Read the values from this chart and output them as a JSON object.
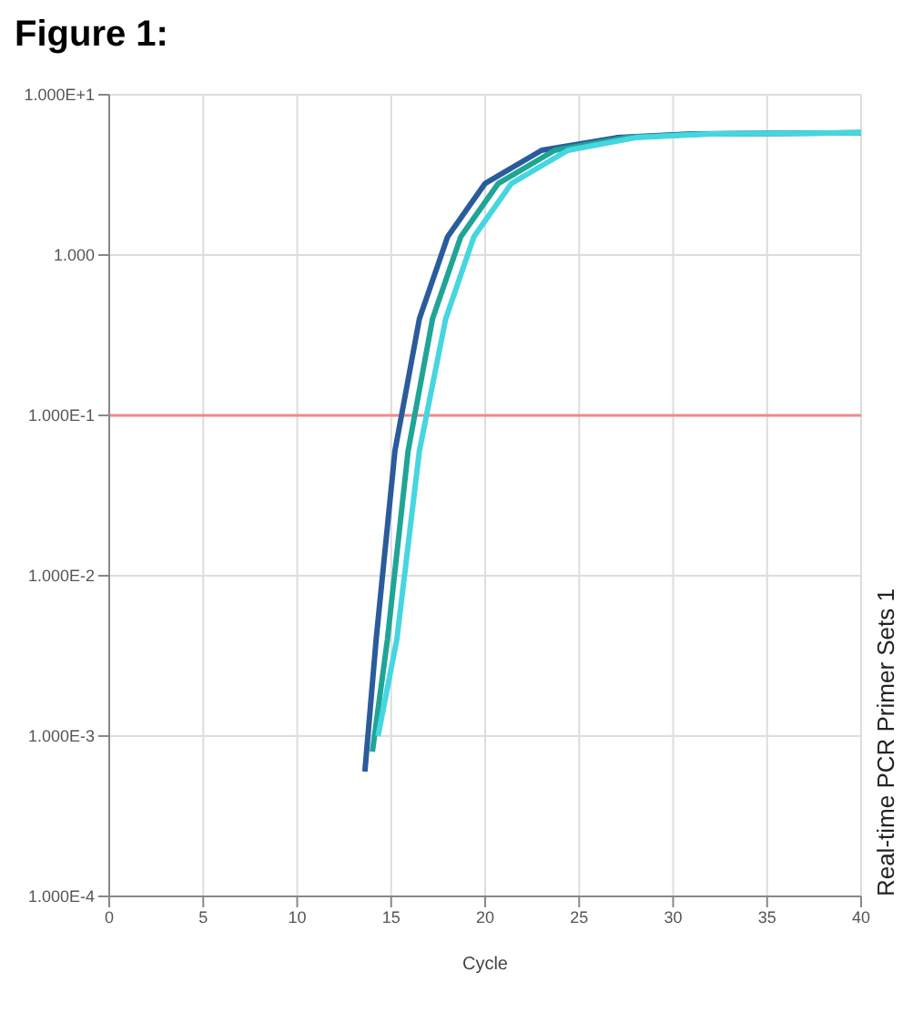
{
  "chart_data": {
    "type": "line",
    "title": "Figure 1:",
    "xlabel": "Cycle",
    "annotations": [
      "Real-time PCR Primer Sets 1"
    ],
    "series": [
      {
        "color": "#2a5c9c",
        "x": [
          13.6,
          14.2,
          15.2,
          16.5,
          18,
          20,
          23,
          27,
          31,
          40
        ],
        "values": [
          0.0006,
          0.004,
          0.06,
          0.4,
          1.3,
          2.8,
          4.5,
          5.4,
          5.7,
          5.8
        ]
      },
      {
        "color": "#1fa596",
        "x": [
          14,
          14.8,
          15.9,
          17.2,
          18.7,
          20.7,
          23.7,
          27.5,
          31.5,
          40
        ],
        "values": [
          0.0008,
          0.004,
          0.06,
          0.4,
          1.3,
          2.8,
          4.5,
          5.4,
          5.7,
          5.8
        ]
      },
      {
        "color": "#45d6e0",
        "x": [
          14.3,
          15.3,
          16.5,
          17.9,
          19.4,
          21.4,
          24.4,
          28,
          32,
          40
        ],
        "values": [
          0.001,
          0.004,
          0.06,
          0.4,
          1.3,
          2.8,
          4.5,
          5.4,
          5.7,
          5.8
        ]
      }
    ],
    "xlim": [
      0,
      40
    ],
    "xticks": [
      0,
      5,
      10,
      15,
      20,
      25,
      30,
      35,
      40
    ],
    "ylim": [
      0.0001,
      10
    ],
    "yticks": [
      {
        "value": 0.0001,
        "label": "1.000E-4"
      },
      {
        "value": 0.001,
        "label": "1.000E-3"
      },
      {
        "value": 0.01,
        "label": "1.000E-2"
      },
      {
        "value": 0.1,
        "label": "1.000E-1"
      },
      {
        "value": 1,
        "label": "1.000"
      },
      {
        "value": 10,
        "label": "1.000E+1"
      }
    ],
    "log": "y",
    "grid": true,
    "marker": "none",
    "line_style": "solid",
    "ref_lines": [
      {
        "axis": "y",
        "value": 0.1,
        "color": "#f08a8a"
      }
    ]
  }
}
